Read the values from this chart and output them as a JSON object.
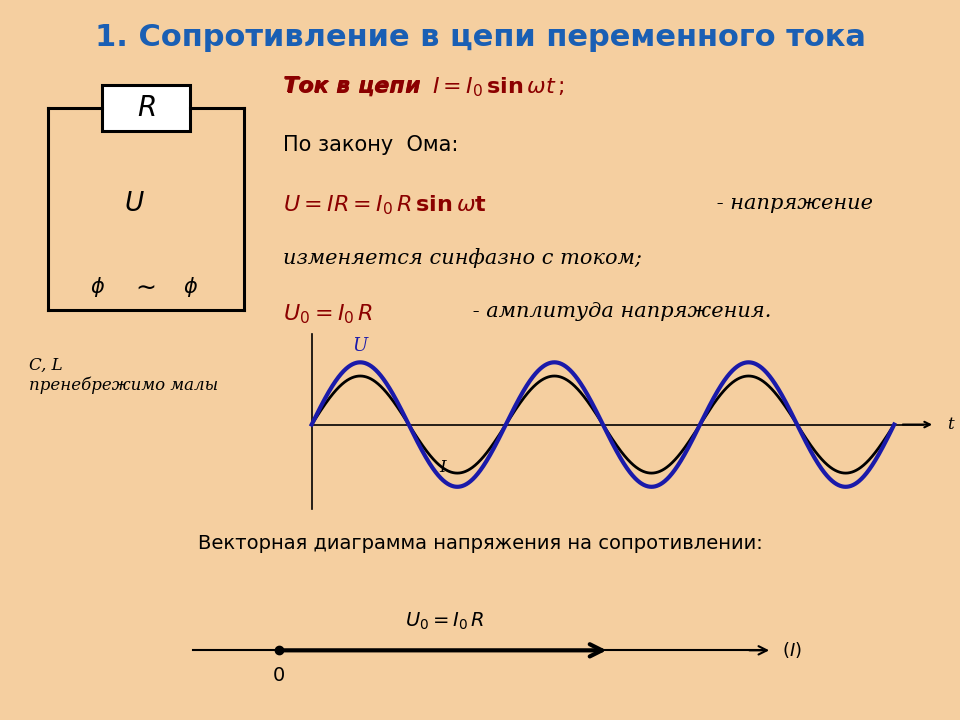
{
  "title": "1. Сопротивление в цепи переменного тока",
  "bg_color": "#f5cfa0",
  "title_color": "#1a5fb4",
  "formula_color": "#8b0000",
  "text_color": "#000000",
  "cl_text": "C, L\nпренебрежимо малы",
  "vector_label": "Векторная диаграмма напряжения на сопротивлении:",
  "U_amp": 1.0,
  "I_amp": 0.78,
  "n_cycles": 3,
  "wave_color_U": "#1a1aaa",
  "wave_color_I": "#000000"
}
